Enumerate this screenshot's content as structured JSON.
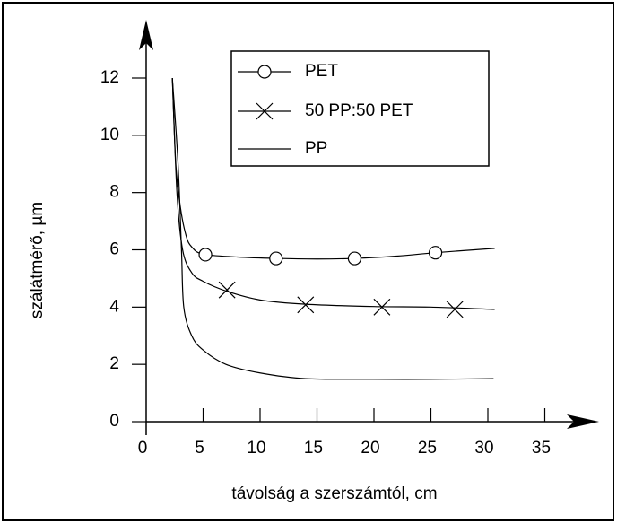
{
  "chart_data": {
    "type": "line",
    "xlabel": "távolság a szerszámtól, cm",
    "ylabel": "szálátmérő, µm",
    "xlim": [
      0,
      35
    ],
    "ylim": [
      0,
      12
    ],
    "xticks": [
      0,
      5,
      10,
      15,
      20,
      25,
      30,
      35
    ],
    "yticks": [
      0,
      2,
      4,
      6,
      8,
      10,
      12
    ],
    "series": [
      {
        "name": "PET",
        "color": "#000000",
        "marker": "circle",
        "x": [
          2.3,
          2.6,
          3,
          3.5,
          4,
          5,
          8,
          11.4,
          15,
          18.3,
          22,
          25.4,
          30.6
        ],
        "values": [
          12,
          9,
          7.5,
          6.5,
          6.1,
          5.85,
          5.75,
          5.7,
          5.68,
          5.7,
          5.78,
          5.9,
          6.05
        ],
        "marker_x": [
          5.2,
          11.4,
          18.3,
          25.4
        ],
        "marker_values": [
          5.83,
          5.7,
          5.7,
          5.9
        ]
      },
      {
        "name": "50 PP:50 PET",
        "color": "#000000",
        "marker": "cross",
        "x": [
          2.3,
          2.7,
          3.2,
          4,
          5,
          7.1,
          10,
          14,
          20,
          25,
          30.6
        ],
        "values": [
          12,
          8,
          6,
          5.2,
          4.9,
          4.55,
          4.25,
          4.1,
          4.02,
          4.0,
          3.92
        ],
        "marker_x": [
          7.1,
          14.0,
          20.7,
          27.1
        ],
        "marker_values": [
          4.6,
          4.08,
          4.0,
          3.92
        ]
      },
      {
        "name": "PP",
        "color": "#000000",
        "marker": "none",
        "x": [
          2.3,
          2.8,
          3.1,
          3.3,
          4,
          5,
          7,
          10,
          14,
          20,
          25,
          30.5
        ],
        "values": [
          12,
          9,
          6,
          4,
          3.0,
          2.5,
          2.0,
          1.7,
          1.5,
          1.48,
          1.48,
          1.5
        ]
      }
    ]
  }
}
